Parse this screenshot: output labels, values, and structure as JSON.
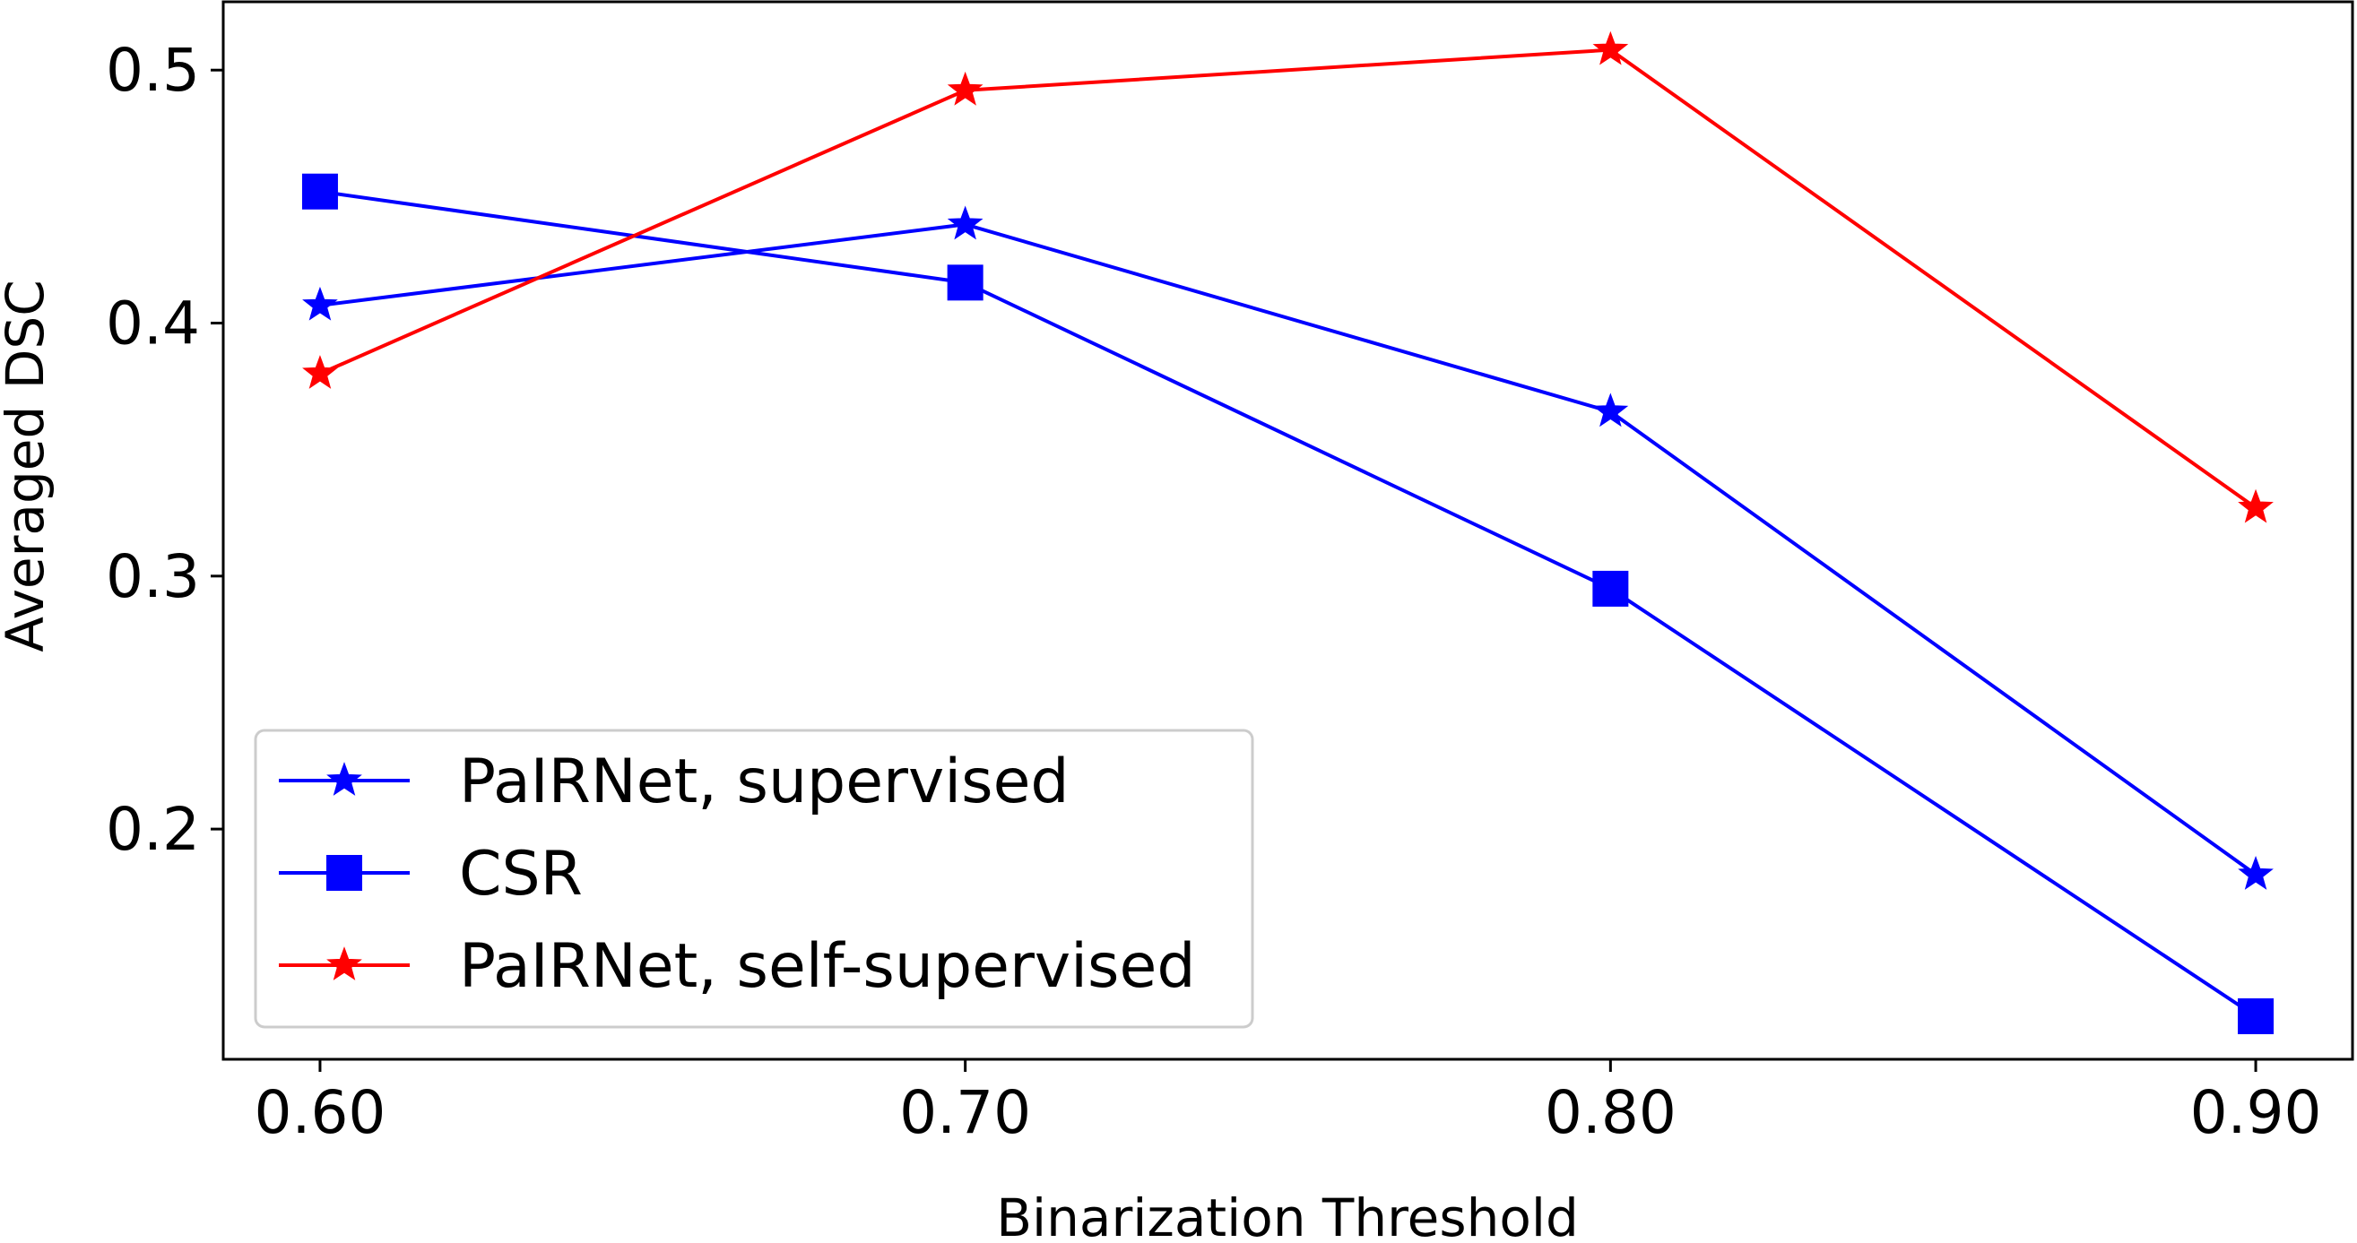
{
  "chart_data": {
    "type": "line",
    "title": "",
    "xlabel": "Binarization Threshold",
    "ylabel": "Averaged DSC",
    "x": [
      0.6,
      0.7,
      0.8,
      0.9
    ],
    "x_tick_labels": [
      "0.60",
      "0.70",
      "0.80",
      "0.90"
    ],
    "y_ticks": [
      0.2,
      0.3,
      0.4,
      0.5
    ],
    "y_tick_labels": [
      "0.2",
      "0.3",
      "0.4",
      "0.5"
    ],
    "xlim": [
      0.585,
      0.915
    ],
    "ylim": [
      0.109,
      0.527
    ],
    "grid": false,
    "legend_position": "lower-left",
    "series": [
      {
        "name": "PaIRNet, supervised",
        "values": [
          0.407,
          0.439,
          0.365,
          0.182
        ],
        "color": "#0000ff",
        "marker": "star"
      },
      {
        "name": "CSR",
        "values": [
          0.452,
          0.416,
          0.295,
          0.126
        ],
        "color": "#0000ff",
        "marker": "square"
      },
      {
        "name": "PaIRNet, self-supervised",
        "values": [
          0.38,
          0.492,
          0.508,
          0.327
        ],
        "color": "#ff0000",
        "marker": "star"
      }
    ]
  }
}
